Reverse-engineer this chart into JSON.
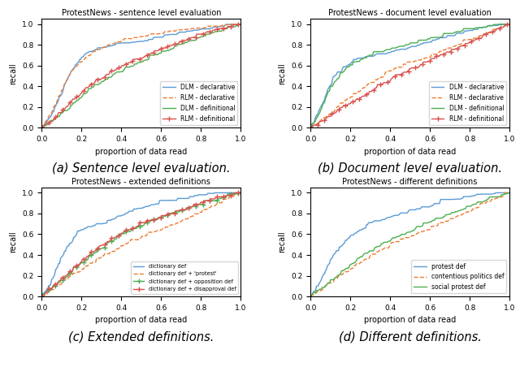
{
  "subplot_titles": [
    "ProtestNews - sentence level evaluation",
    "ProtestNews - document level evaluation",
    "ProtestNews - extended definitions",
    "ProtestNews - different definitions"
  ],
  "captions": [
    "(a) Sentence level evaluation.",
    "(b) Document level evaluation.",
    "(c) Extended definitions.",
    "(d) Different definitions."
  ],
  "subplot_a_lines": [
    {
      "label": "DLM - declarative",
      "color": "#5b9bd5",
      "linestyle": "-",
      "marker": null
    },
    {
      "label": "RLM - declarative",
      "color": "#ed7d31",
      "linestyle": "--",
      "marker": null
    },
    {
      "label": "DLM - definitional",
      "color": "#4caf50",
      "linestyle": "-",
      "marker": null
    },
    {
      "label": "RLM - definitional",
      "color": "#d9534f",
      "linestyle": "-",
      "marker": "+"
    }
  ],
  "subplot_b_lines": [
    {
      "label": "DLM - declarative",
      "color": "#5b9bd5",
      "linestyle": "-",
      "marker": null
    },
    {
      "label": "RLM - declarative",
      "color": "#ed7d31",
      "linestyle": "--",
      "marker": null
    },
    {
      "label": "DLM - definitional",
      "color": "#4caf50",
      "linestyle": "-",
      "marker": null
    },
    {
      "label": "RLM - definitional",
      "color": "#d9534f",
      "linestyle": "-",
      "marker": "+"
    }
  ],
  "subplot_c_lines": [
    {
      "label": "dictionary def",
      "color": "#5b9bd5",
      "linestyle": "-",
      "marker": null
    },
    {
      "label": "dictionary def + 'protest'",
      "color": "#ed7d31",
      "linestyle": "--",
      "marker": null
    },
    {
      "label": "dictionary def + opposition def",
      "color": "#4caf50",
      "linestyle": "-",
      "marker": "+"
    },
    {
      "label": "dictionary def + disapproval def",
      "color": "#d9534f",
      "linestyle": "-",
      "marker": "+"
    }
  ],
  "subplot_d_lines": [
    {
      "label": "protest def",
      "color": "#5b9bd5",
      "linestyle": "-",
      "marker": null
    },
    {
      "label": "contentious politics def",
      "color": "#ed7d31",
      "linestyle": "--",
      "marker": null
    },
    {
      "label": "social protest def",
      "color": "#4caf50",
      "linestyle": "-",
      "marker": null
    }
  ],
  "xlabel": "proportion of data read",
  "ylabel": "recall",
  "lw": 1.0,
  "markevery": 7,
  "markersize": 4,
  "legend_fontsize": 5.5,
  "title_fontsize": 7.0,
  "tick_fontsize": 6.5,
  "axis_label_fontsize": 7.0,
  "caption_fontsize": 10.5
}
